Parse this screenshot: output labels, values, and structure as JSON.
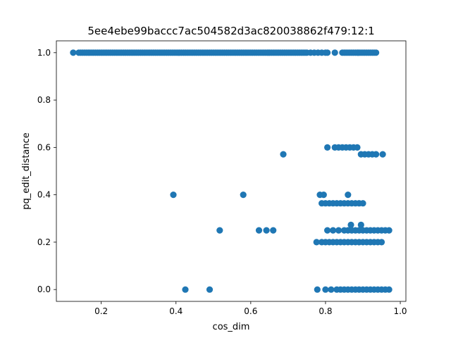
{
  "chart_data": {
    "type": "scatter",
    "title": "5ee4ebe99baccc7ac504582d3ac820038862f479:12:1",
    "xlabel": "cos_dim",
    "ylabel": "pq_edit_distance",
    "xlim": [
      0.08,
      1.015
    ],
    "ylim": [
      -0.05,
      1.05
    ],
    "xticks": [
      0.2,
      0.4,
      0.6,
      0.8,
      1.0
    ],
    "xtick_labels": [
      "0.2",
      "0.4",
      "0.6",
      "0.8",
      "1.0"
    ],
    "yticks": [
      0.0,
      0.2,
      0.4,
      0.6,
      0.8,
      1.0
    ],
    "ytick_labels": [
      "0.0",
      "0.2",
      "0.4",
      "0.6",
      "0.8",
      "1.0"
    ],
    "grid": false,
    "color": "#1f77b4",
    "points": [
      [
        0.125,
        1.0
      ],
      [
        0.14,
        1.0
      ],
      [
        0.145,
        1.0
      ],
      [
        0.15,
        1.0
      ],
      [
        0.155,
        1.0
      ],
      [
        0.16,
        1.0
      ],
      [
        0.165,
        1.0
      ],
      [
        0.17,
        1.0
      ],
      [
        0.175,
        1.0
      ],
      [
        0.18,
        1.0
      ],
      [
        0.185,
        1.0
      ],
      [
        0.19,
        1.0
      ],
      [
        0.195,
        1.0
      ],
      [
        0.2,
        1.0
      ],
      [
        0.205,
        1.0
      ],
      [
        0.21,
        1.0
      ],
      [
        0.215,
        1.0
      ],
      [
        0.22,
        1.0
      ],
      [
        0.225,
        1.0
      ],
      [
        0.23,
        1.0
      ],
      [
        0.235,
        1.0
      ],
      [
        0.24,
        1.0
      ],
      [
        0.245,
        1.0
      ],
      [
        0.25,
        1.0
      ],
      [
        0.255,
        1.0
      ],
      [
        0.26,
        1.0
      ],
      [
        0.265,
        1.0
      ],
      [
        0.27,
        1.0
      ],
      [
        0.275,
        1.0
      ],
      [
        0.28,
        1.0
      ],
      [
        0.285,
        1.0
      ],
      [
        0.29,
        1.0
      ],
      [
        0.295,
        1.0
      ],
      [
        0.3,
        1.0
      ],
      [
        0.305,
        1.0
      ],
      [
        0.31,
        1.0
      ],
      [
        0.315,
        1.0
      ],
      [
        0.32,
        1.0
      ],
      [
        0.325,
        1.0
      ],
      [
        0.33,
        1.0
      ],
      [
        0.335,
        1.0
      ],
      [
        0.34,
        1.0
      ],
      [
        0.345,
        1.0
      ],
      [
        0.35,
        1.0
      ],
      [
        0.355,
        1.0
      ],
      [
        0.36,
        1.0
      ],
      [
        0.365,
        1.0
      ],
      [
        0.37,
        1.0
      ],
      [
        0.375,
        1.0
      ],
      [
        0.38,
        1.0
      ],
      [
        0.385,
        1.0
      ],
      [
        0.39,
        1.0
      ],
      [
        0.395,
        1.0
      ],
      [
        0.4,
        1.0
      ],
      [
        0.405,
        1.0
      ],
      [
        0.41,
        1.0
      ],
      [
        0.415,
        1.0
      ],
      [
        0.42,
        1.0
      ],
      [
        0.425,
        1.0
      ],
      [
        0.43,
        1.0
      ],
      [
        0.435,
        1.0
      ],
      [
        0.44,
        1.0
      ],
      [
        0.445,
        1.0
      ],
      [
        0.45,
        1.0
      ],
      [
        0.455,
        1.0
      ],
      [
        0.46,
        1.0
      ],
      [
        0.465,
        1.0
      ],
      [
        0.47,
        1.0
      ],
      [
        0.475,
        1.0
      ],
      [
        0.48,
        1.0
      ],
      [
        0.485,
        1.0
      ],
      [
        0.49,
        1.0
      ],
      [
        0.495,
        1.0
      ],
      [
        0.5,
        1.0
      ],
      [
        0.505,
        1.0
      ],
      [
        0.51,
        1.0
      ],
      [
        0.515,
        1.0
      ],
      [
        0.52,
        1.0
      ],
      [
        0.525,
        1.0
      ],
      [
        0.53,
        1.0
      ],
      [
        0.535,
        1.0
      ],
      [
        0.54,
        1.0
      ],
      [
        0.545,
        1.0
      ],
      [
        0.55,
        1.0
      ],
      [
        0.555,
        1.0
      ],
      [
        0.56,
        1.0
      ],
      [
        0.565,
        1.0
      ],
      [
        0.57,
        1.0
      ],
      [
        0.575,
        1.0
      ],
      [
        0.58,
        1.0
      ],
      [
        0.585,
        1.0
      ],
      [
        0.59,
        1.0
      ],
      [
        0.595,
        1.0
      ],
      [
        0.6,
        1.0
      ],
      [
        0.605,
        1.0
      ],
      [
        0.61,
        1.0
      ],
      [
        0.615,
        1.0
      ],
      [
        0.62,
        1.0
      ],
      [
        0.625,
        1.0
      ],
      [
        0.63,
        1.0
      ],
      [
        0.635,
        1.0
      ],
      [
        0.64,
        1.0
      ],
      [
        0.645,
        1.0
      ],
      [
        0.65,
        1.0
      ],
      [
        0.655,
        1.0
      ],
      [
        0.66,
        1.0
      ],
      [
        0.665,
        1.0
      ],
      [
        0.67,
        1.0
      ],
      [
        0.675,
        1.0
      ],
      [
        0.68,
        1.0
      ],
      [
        0.685,
        1.0
      ],
      [
        0.69,
        1.0
      ],
      [
        0.695,
        1.0
      ],
      [
        0.7,
        1.0
      ],
      [
        0.705,
        1.0
      ],
      [
        0.71,
        1.0
      ],
      [
        0.715,
        1.0
      ],
      [
        0.72,
        1.0
      ],
      [
        0.725,
        1.0
      ],
      [
        0.73,
        1.0
      ],
      [
        0.735,
        1.0
      ],
      [
        0.74,
        1.0
      ],
      [
        0.745,
        1.0
      ],
      [
        0.75,
        1.0
      ],
      [
        0.76,
        1.0
      ],
      [
        0.77,
        1.0
      ],
      [
        0.78,
        1.0
      ],
      [
        0.79,
        1.0
      ],
      [
        0.8,
        1.0
      ],
      [
        0.805,
        1.0
      ],
      [
        0.825,
        1.0
      ],
      [
        0.845,
        1.0
      ],
      [
        0.85,
        1.0
      ],
      [
        0.855,
        1.0
      ],
      [
        0.86,
        1.0
      ],
      [
        0.865,
        1.0
      ],
      [
        0.87,
        1.0
      ],
      [
        0.875,
        1.0
      ],
      [
        0.88,
        1.0
      ],
      [
        0.885,
        1.0
      ],
      [
        0.89,
        1.0
      ],
      [
        0.895,
        1.0
      ],
      [
        0.9,
        1.0
      ],
      [
        0.905,
        1.0
      ],
      [
        0.91,
        1.0
      ],
      [
        0.915,
        1.0
      ],
      [
        0.92,
        1.0
      ],
      [
        0.925,
        1.0
      ],
      [
        0.93,
        1.0
      ],
      [
        0.935,
        1.0
      ],
      [
        0.805,
        0.6
      ],
      [
        0.825,
        0.6
      ],
      [
        0.835,
        0.6
      ],
      [
        0.845,
        0.6
      ],
      [
        0.855,
        0.6
      ],
      [
        0.865,
        0.6
      ],
      [
        0.875,
        0.6
      ],
      [
        0.885,
        0.6
      ],
      [
        0.687,
        0.571
      ],
      [
        0.895,
        0.571
      ],
      [
        0.905,
        0.571
      ],
      [
        0.915,
        0.571
      ],
      [
        0.925,
        0.571
      ],
      [
        0.935,
        0.571
      ],
      [
        0.953,
        0.571
      ],
      [
        0.393,
        0.4
      ],
      [
        0.58,
        0.4
      ],
      [
        0.785,
        0.4
      ],
      [
        0.795,
        0.4
      ],
      [
        0.86,
        0.4
      ],
      [
        0.79,
        0.364
      ],
      [
        0.8,
        0.364
      ],
      [
        0.81,
        0.364
      ],
      [
        0.82,
        0.364
      ],
      [
        0.83,
        0.364
      ],
      [
        0.84,
        0.364
      ],
      [
        0.85,
        0.364
      ],
      [
        0.86,
        0.364
      ],
      [
        0.87,
        0.364
      ],
      [
        0.88,
        0.364
      ],
      [
        0.89,
        0.364
      ],
      [
        0.9,
        0.364
      ],
      [
        0.868,
        0.273
      ],
      [
        0.895,
        0.273
      ],
      [
        0.517,
        0.25
      ],
      [
        0.622,
        0.25
      ],
      [
        0.642,
        0.25
      ],
      [
        0.66,
        0.25
      ],
      [
        0.805,
        0.25
      ],
      [
        0.82,
        0.25
      ],
      [
        0.835,
        0.25
      ],
      [
        0.85,
        0.25
      ],
      [
        0.86,
        0.25
      ],
      [
        0.87,
        0.25
      ],
      [
        0.88,
        0.25
      ],
      [
        0.89,
        0.25
      ],
      [
        0.9,
        0.25
      ],
      [
        0.91,
        0.25
      ],
      [
        0.92,
        0.25
      ],
      [
        0.93,
        0.25
      ],
      [
        0.94,
        0.25
      ],
      [
        0.95,
        0.25
      ],
      [
        0.96,
        0.25
      ],
      [
        0.97,
        0.25
      ],
      [
        0.776,
        0.2
      ],
      [
        0.79,
        0.2
      ],
      [
        0.8,
        0.2
      ],
      [
        0.81,
        0.2
      ],
      [
        0.82,
        0.2
      ],
      [
        0.83,
        0.2
      ],
      [
        0.84,
        0.2
      ],
      [
        0.85,
        0.2
      ],
      [
        0.86,
        0.2
      ],
      [
        0.87,
        0.2
      ],
      [
        0.88,
        0.2
      ],
      [
        0.89,
        0.2
      ],
      [
        0.9,
        0.2
      ],
      [
        0.91,
        0.2
      ],
      [
        0.92,
        0.2
      ],
      [
        0.93,
        0.2
      ],
      [
        0.94,
        0.2
      ],
      [
        0.95,
        0.2
      ],
      [
        0.425,
        0.0
      ],
      [
        0.49,
        0.0
      ],
      [
        0.778,
        0.0
      ],
      [
        0.8,
        0.0
      ],
      [
        0.815,
        0.0
      ],
      [
        0.83,
        0.0
      ],
      [
        0.84,
        0.0
      ],
      [
        0.85,
        0.0
      ],
      [
        0.86,
        0.0
      ],
      [
        0.87,
        0.0
      ],
      [
        0.88,
        0.0
      ],
      [
        0.89,
        0.0
      ],
      [
        0.9,
        0.0
      ],
      [
        0.91,
        0.0
      ],
      [
        0.92,
        0.0
      ],
      [
        0.93,
        0.0
      ],
      [
        0.94,
        0.0
      ],
      [
        0.95,
        0.0
      ],
      [
        0.96,
        0.0
      ],
      [
        0.97,
        0.0
      ]
    ]
  }
}
